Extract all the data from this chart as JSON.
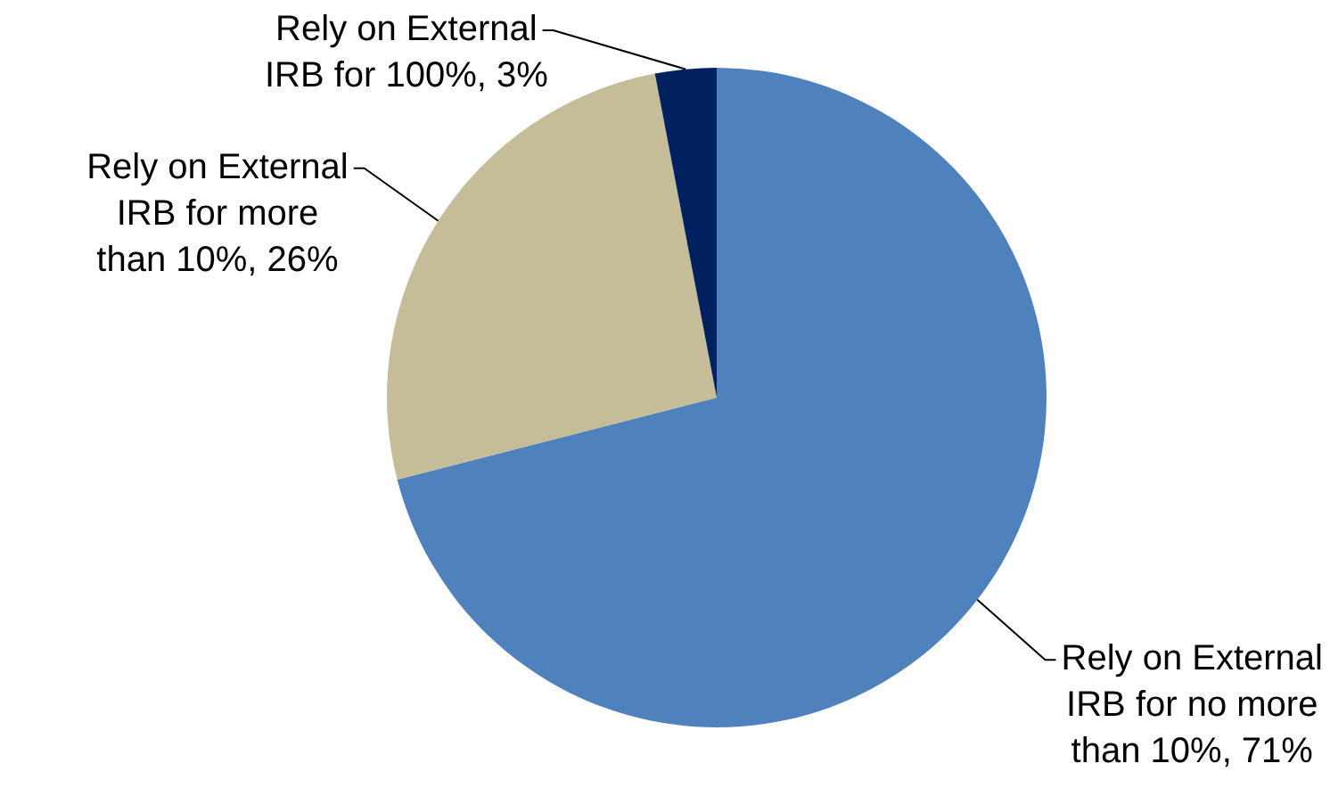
{
  "chart_data": {
    "type": "pie",
    "categories": [
      "Rely on External IRB for no more than 10%",
      "Rely on External IRB for more than 10%",
      "Rely on External IRB for 100%"
    ],
    "values": [
      71,
      26,
      3
    ],
    "colors": [
      "#4f81bd",
      "#c4bd97",
      "#002060"
    ],
    "value_labels": [
      "71%",
      "26%",
      "3%"
    ]
  }
}
